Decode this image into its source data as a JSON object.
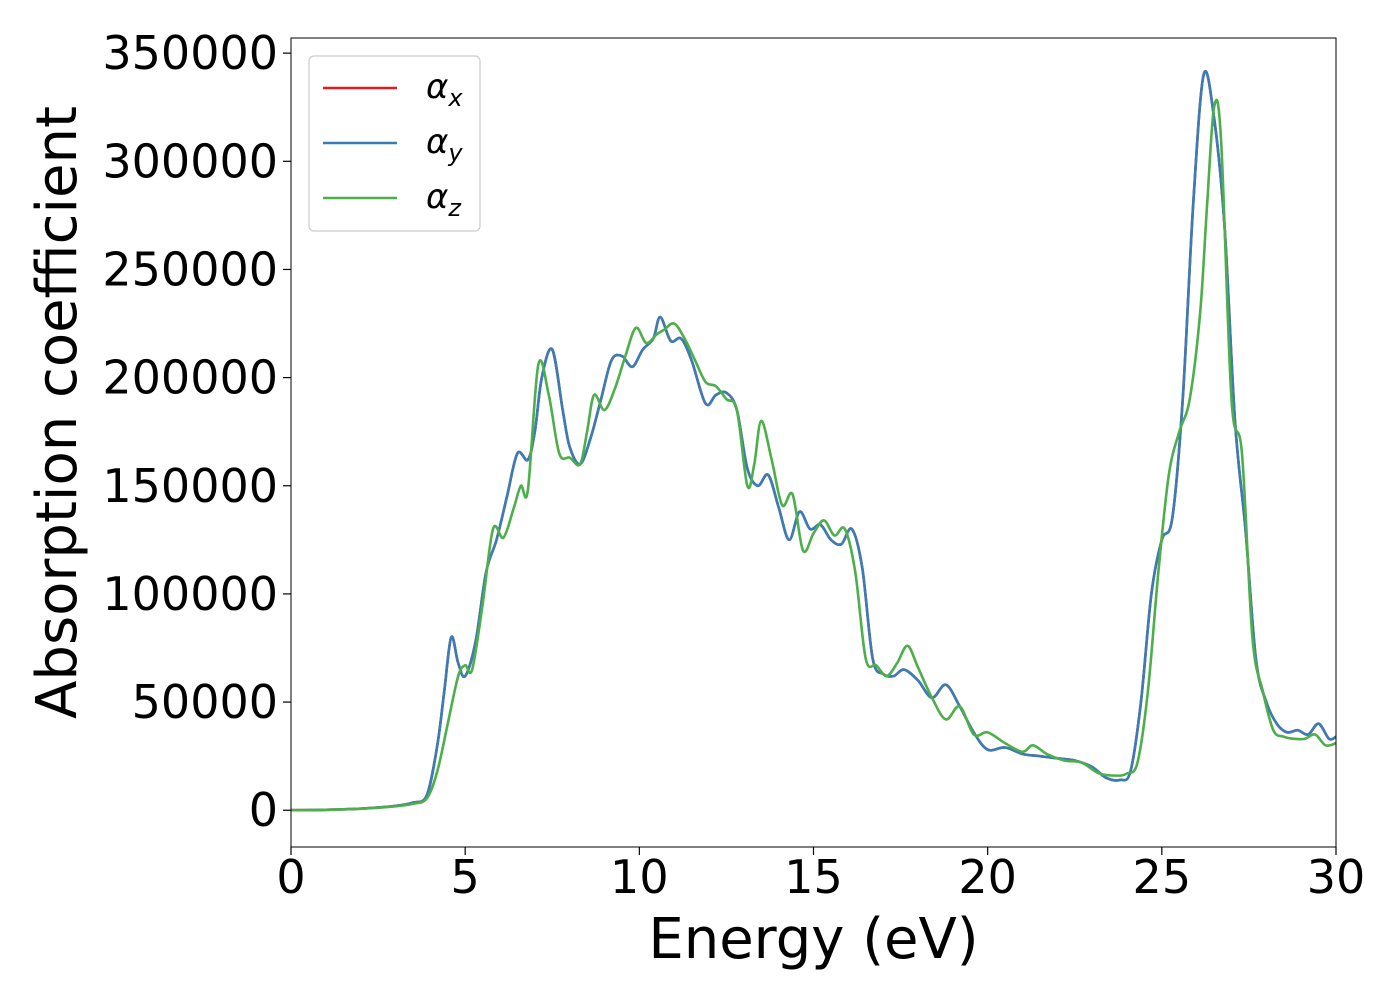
{
  "chart_data": {
    "type": "line",
    "xlabel": "Energy (eV)",
    "ylabel": "Absorption coefficient",
    "xlim": [
      0,
      30
    ],
    "ylim": [
      -17000,
      357000
    ],
    "x_ticks": [
      0,
      5,
      10,
      15,
      20,
      25,
      30
    ],
    "y_ticks": [
      0,
      50000,
      100000,
      150000,
      200000,
      250000,
      300000,
      350000
    ],
    "grid": false,
    "legend_position": "top-left",
    "series": [
      {
        "name": "α",
        "subscript": "x",
        "color": "#e41a1c",
        "x": [
          0,
          1,
          2,
          3,
          3.5,
          3.9,
          4.2,
          4.4,
          4.6,
          4.8,
          5.0,
          5.3,
          5.6,
          5.9,
          6.2,
          6.5,
          6.8,
          7.0,
          7.2,
          7.5,
          7.8,
          8.0,
          8.3,
          8.6,
          8.9,
          9.2,
          9.5,
          9.8,
          10.1,
          10.4,
          10.6,
          10.9,
          11.2,
          11.5,
          11.9,
          12.2,
          12.5,
          12.8,
          13.1,
          13.4,
          13.7,
          14.0,
          14.3,
          14.6,
          14.9,
          15.2,
          15.5,
          15.8,
          16.1,
          16.4,
          16.7,
          17.0,
          17.3,
          17.6,
          18.0,
          18.4,
          18.8,
          19.2,
          19.6,
          20.0,
          20.5,
          21.0,
          21.5,
          22.0,
          22.5,
          23.0,
          23.4,
          23.8,
          24.1,
          24.4,
          24.7,
          25.0,
          25.3,
          25.6,
          25.9,
          26.2,
          26.5,
          26.8,
          27.1,
          27.4,
          27.7,
          28.0,
          28.3,
          28.6,
          28.9,
          29.2,
          29.5,
          29.8,
          30.0
        ],
        "y": [
          0,
          200,
          700,
          2000,
          3500,
          7000,
          30000,
          55000,
          80000,
          68000,
          62000,
          78000,
          110000,
          125000,
          145000,
          165000,
          162000,
          175000,
          200000,
          213000,
          185000,
          168000,
          160000,
          172000,
          190000,
          208000,
          210000,
          205000,
          213000,
          218000,
          228000,
          217000,
          218000,
          208000,
          188000,
          192000,
          193000,
          185000,
          158000,
          150000,
          155000,
          140000,
          125000,
          138000,
          130000,
          132000,
          125000,
          123000,
          130000,
          112000,
          70000,
          63000,
          62000,
          65000,
          60000,
          52000,
          58000,
          48000,
          36000,
          28000,
          29000,
          26000,
          25000,
          24000,
          23000,
          20000,
          15000,
          14000,
          18000,
          50000,
          100000,
          125000,
          135000,
          190000,
          280000,
          340000,
          320000,
          270000,
          180000,
          130000,
          70000,
          50000,
          40000,
          36000,
          37000,
          35000,
          40000,
          33000,
          34000
        ]
      },
      {
        "name": "α",
        "subscript": "y",
        "color": "#377eb8",
        "x": [
          0,
          1,
          2,
          3,
          3.5,
          3.9,
          4.2,
          4.4,
          4.6,
          4.8,
          5.0,
          5.3,
          5.6,
          5.9,
          6.2,
          6.5,
          6.8,
          7.0,
          7.2,
          7.5,
          7.8,
          8.0,
          8.3,
          8.6,
          8.9,
          9.2,
          9.5,
          9.8,
          10.1,
          10.4,
          10.6,
          10.9,
          11.2,
          11.5,
          11.9,
          12.2,
          12.5,
          12.8,
          13.1,
          13.4,
          13.7,
          14.0,
          14.3,
          14.6,
          14.9,
          15.2,
          15.5,
          15.8,
          16.1,
          16.4,
          16.7,
          17.0,
          17.3,
          17.6,
          18.0,
          18.4,
          18.8,
          19.2,
          19.6,
          20.0,
          20.5,
          21.0,
          21.5,
          22.0,
          22.5,
          23.0,
          23.4,
          23.8,
          24.1,
          24.4,
          24.7,
          25.0,
          25.3,
          25.6,
          25.9,
          26.2,
          26.5,
          26.8,
          27.1,
          27.4,
          27.7,
          28.0,
          28.3,
          28.6,
          28.9,
          29.2,
          29.5,
          29.8,
          30.0
        ],
        "y": [
          0,
          200,
          700,
          2000,
          3500,
          7000,
          30000,
          55000,
          80000,
          68000,
          62000,
          78000,
          110000,
          125000,
          145000,
          165000,
          162000,
          175000,
          200000,
          213000,
          185000,
          168000,
          160000,
          172000,
          190000,
          208000,
          210000,
          205000,
          213000,
          218000,
          228000,
          217000,
          218000,
          208000,
          188000,
          192000,
          193000,
          185000,
          158000,
          150000,
          155000,
          140000,
          125000,
          138000,
          130000,
          132000,
          125000,
          123000,
          130000,
          112000,
          70000,
          63000,
          62000,
          65000,
          60000,
          52000,
          58000,
          48000,
          36000,
          28000,
          29000,
          26000,
          25000,
          24000,
          23000,
          20000,
          15000,
          14000,
          18000,
          50000,
          100000,
          125000,
          135000,
          190000,
          280000,
          340000,
          320000,
          270000,
          180000,
          130000,
          70000,
          50000,
          40000,
          36000,
          37000,
          35000,
          40000,
          33000,
          34000
        ]
      },
      {
        "name": "α",
        "subscript": "z",
        "color": "#4daf4a",
        "x": [
          0,
          1,
          2,
          3,
          3.5,
          3.9,
          4.2,
          4.5,
          4.8,
          5.0,
          5.2,
          5.5,
          5.8,
          6.1,
          6.4,
          6.6,
          6.8,
          7.1,
          7.4,
          7.7,
          8.0,
          8.3,
          8.5,
          8.7,
          9.0,
          9.3,
          9.6,
          9.9,
          10.2,
          10.5,
          10.7,
          11.0,
          11.3,
          11.6,
          11.9,
          12.2,
          12.5,
          12.8,
          13.1,
          13.3,
          13.5,
          13.8,
          14.1,
          14.4,
          14.7,
          15.0,
          15.3,
          15.6,
          15.9,
          16.2,
          16.5,
          16.8,
          17.1,
          17.4,
          17.7,
          18.0,
          18.4,
          18.8,
          19.2,
          19.6,
          20.0,
          20.5,
          21.0,
          21.3,
          21.7,
          22.2,
          22.7,
          23.2,
          23.7,
          24.0,
          24.3,
          24.6,
          24.9,
          25.2,
          25.5,
          25.8,
          26.1,
          26.3,
          26.5,
          26.7,
          27.0,
          27.3,
          27.6,
          27.9,
          28.2,
          28.5,
          28.8,
          29.1,
          29.4,
          29.7,
          30.0
        ],
        "y": [
          0,
          200,
          700,
          1800,
          3000,
          5500,
          18000,
          40000,
          62000,
          67000,
          65000,
          95000,
          130000,
          126000,
          140000,
          150000,
          148000,
          206000,
          192000,
          165000,
          163000,
          160000,
          175000,
          192000,
          185000,
          195000,
          210000,
          223000,
          216000,
          220000,
          222000,
          225000,
          218000,
          208000,
          198000,
          196000,
          190000,
          185000,
          150000,
          160000,
          180000,
          162000,
          141000,
          146000,
          120000,
          128000,
          134000,
          127000,
          130000,
          110000,
          70000,
          67000,
          62000,
          68000,
          76000,
          66000,
          52000,
          42000,
          48000,
          35000,
          36000,
          31000,
          27000,
          30000,
          26000,
          23000,
          22000,
          17000,
          16000,
          17000,
          22000,
          55000,
          110000,
          155000,
          175000,
          190000,
          230000,
          280000,
          325000,
          310000,
          190000,
          165000,
          80000,
          55000,
          37000,
          34000,
          33000,
          33000,
          35000,
          30000,
          31000
        ]
      }
    ]
  }
}
